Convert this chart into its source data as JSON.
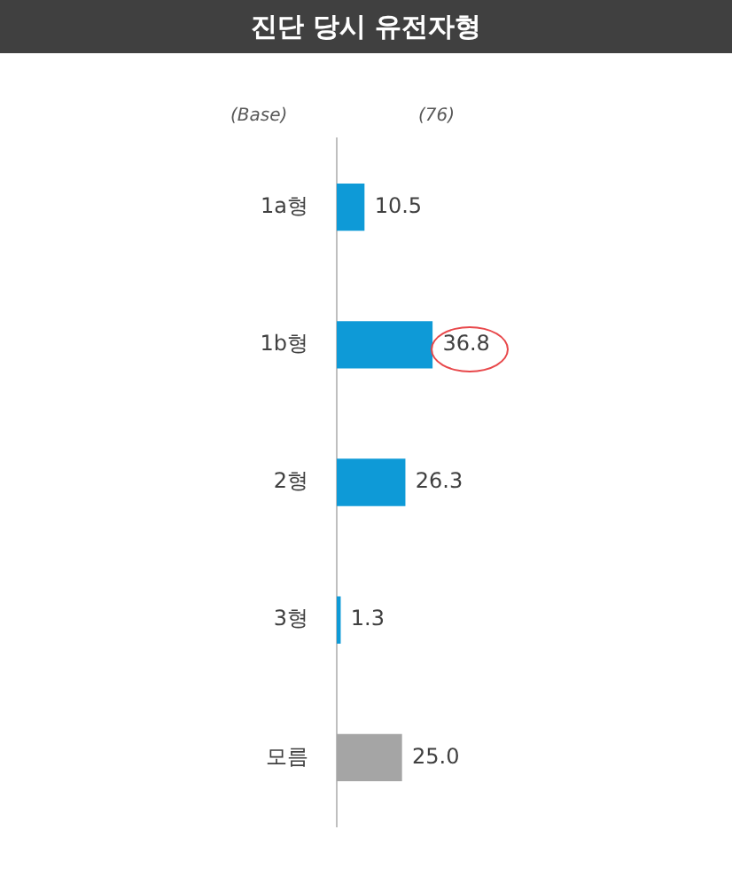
{
  "chart_data": {
    "type": "bar",
    "orientation": "horizontal",
    "title": "진단 당시 유전자형",
    "annotations": [
      "(Base)",
      "(76)"
    ],
    "categories": [
      "1a형",
      "1b형",
      "2형",
      "3형",
      "모름"
    ],
    "values": [
      10.5,
      36.8,
      26.3,
      1.3,
      25.0
    ],
    "value_labels": [
      "10.5",
      "36.8",
      "26.3",
      "1.3",
      "25.0"
    ],
    "colors": [
      "#0e9ad7",
      "#0e9ad7",
      "#0e9ad7",
      "#0e9ad7",
      "#a5a5a5"
    ],
    "legend": false
  }
}
